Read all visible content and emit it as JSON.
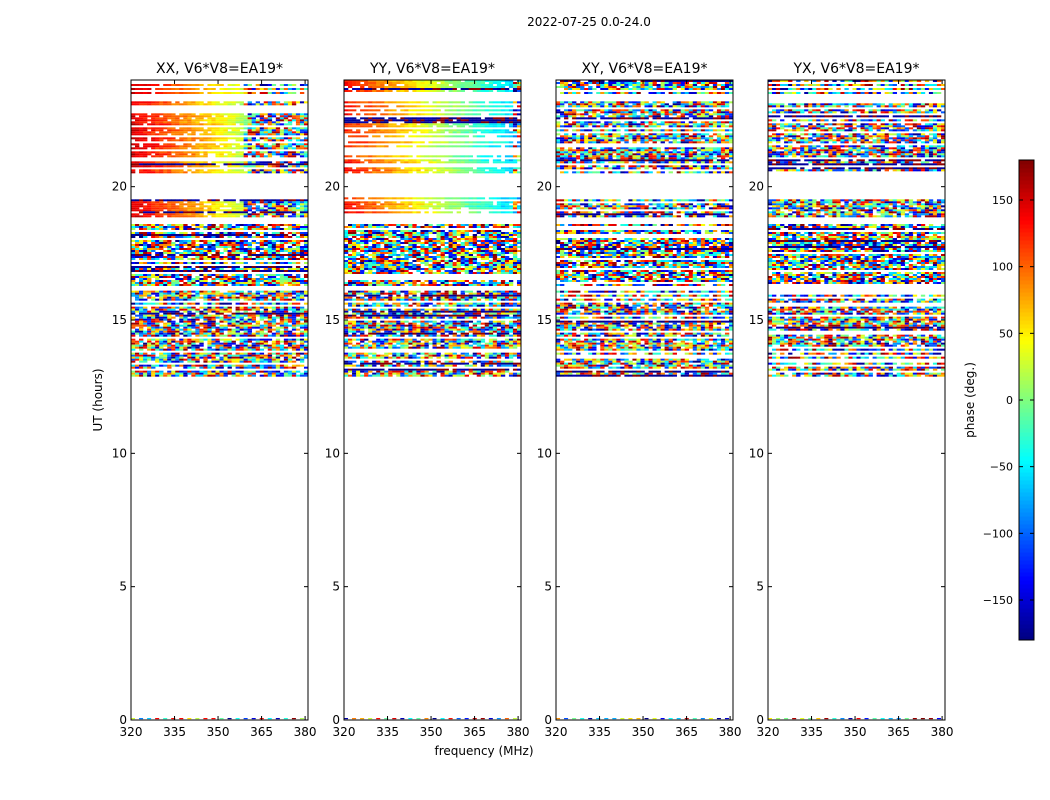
{
  "figure": {
    "suptitle": "2022-07-25 0.0-24.0"
  },
  "colors": {
    "colormap": [
      "#00007f",
      "#0000ff",
      "#007fff",
      "#00ffff",
      "#7fff7f",
      "#ffff00",
      "#ff7f00",
      "#ff0000",
      "#7f0000"
    ]
  },
  "chart_data": [
    {
      "type": "heatmap",
      "title": "XX, V6*V8=EA19*",
      "xlabel": "",
      "ylabel": "UT (hours)",
      "xlim": [
        320,
        381
      ],
      "ylim": [
        0,
        24
      ],
      "xticks": [
        320,
        335,
        350,
        365,
        380
      ],
      "yticks": [
        0,
        5,
        10,
        15,
        20
      ],
      "coherent_phase_by_channel": {
        "start_deg": 150,
        "end_deg": 20,
        "decorrelates_above_mhz": 359
      },
      "data_rows_ut_ranges": [
        [
          12.9,
          16.1
        ],
        [
          16.3,
          18.6
        ],
        [
          18.9,
          19.6
        ],
        [
          20.5,
          22.9
        ],
        [
          23.0,
          23.2
        ],
        [
          23.5,
          24.0
        ]
      ]
    },
    {
      "type": "heatmap",
      "title": "YY, V6*V8=EA19*",
      "xlabel": "frequency (MHz)",
      "ylabel": "",
      "xlim": [
        320,
        381
      ],
      "ylim": [
        0,
        24
      ],
      "xticks": [
        320,
        335,
        350,
        365,
        380
      ],
      "yticks": [
        0,
        5,
        10,
        15,
        20
      ],
      "coherent_phase_by_channel": {
        "start_deg": 130,
        "end_deg": -60,
        "decorrelates_above_mhz": 378
      },
      "data_rows_ut_ranges": [
        [
          12.9,
          16.1
        ],
        [
          16.3,
          18.6
        ],
        [
          18.9,
          19.6
        ],
        [
          20.5,
          22.9
        ],
        [
          23.0,
          23.2
        ],
        [
          23.5,
          24.0
        ]
      ]
    },
    {
      "type": "heatmap",
      "title": "XY, V6*V8=EA19*",
      "xlabel": "",
      "ylabel": "",
      "xlim": [
        320,
        381
      ],
      "ylim": [
        0,
        24
      ],
      "xticks": [
        320,
        335,
        350,
        365,
        380
      ],
      "yticks": [
        0,
        5,
        10,
        15,
        20
      ],
      "coherent_phase_by_channel": null,
      "data_rows_ut_ranges": [
        [
          12.9,
          16.1
        ],
        [
          16.3,
          18.6
        ],
        [
          18.9,
          19.6
        ],
        [
          20.5,
          22.9
        ],
        [
          23.0,
          23.2
        ],
        [
          23.5,
          24.0
        ]
      ]
    },
    {
      "type": "heatmap",
      "title": "YX, V6*V8=EA19*",
      "xlabel": "",
      "ylabel": "",
      "xlim": [
        320,
        381
      ],
      "ylim": [
        0,
        24
      ],
      "xticks": [
        320,
        335,
        350,
        365,
        380
      ],
      "yticks": [
        0,
        5,
        10,
        15,
        20
      ],
      "coherent_phase_by_channel": null,
      "data_rows_ut_ranges": [
        [
          12.9,
          16.1
        ],
        [
          16.3,
          18.6
        ],
        [
          18.9,
          19.6
        ],
        [
          20.5,
          22.9
        ],
        [
          23.0,
          23.2
        ],
        [
          23.5,
          24.0
        ]
      ]
    }
  ],
  "colorbar": {
    "label": "phase (deg.)",
    "range": [
      -180,
      180
    ],
    "ticks": [
      150,
      100,
      50,
      0,
      -50,
      -100,
      -150
    ],
    "tick_labels": [
      "150",
      "100",
      "50",
      "0",
      "−50",
      "−100",
      "−150"
    ]
  }
}
